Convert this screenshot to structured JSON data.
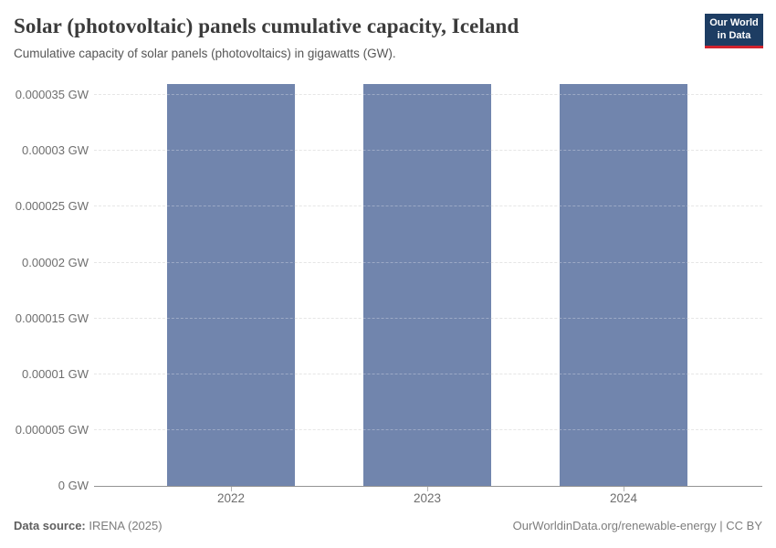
{
  "header": {
    "title": "Solar (photovoltaic) panels cumulative capacity, Iceland",
    "subtitle": "Cumulative capacity of solar panels (photovoltaics) in gigawatts (GW).",
    "logo": {
      "line1": "Our World",
      "line2": "in Data"
    }
  },
  "footer": {
    "source_label": "Data source:",
    "source_value": "IRENA (2025)",
    "right_text": "OurWorldinData.org/renewable-energy | CC BY"
  },
  "colors": {
    "bar": "#7185ad",
    "gridline": "#dcdcdc",
    "axis_line": "#949494",
    "tick_label": "#6e6e6e",
    "title_text": "#3b3b3b",
    "subtitle_text": "#555555",
    "footer_text": "#7d7d7d",
    "logo_background": "#1d3d63",
    "logo_red": "#d0232e"
  },
  "chart_data": {
    "type": "bar",
    "title": "Solar (photovoltaic) panels cumulative capacity, Iceland",
    "subtitle": "Cumulative capacity of solar panels (photovoltaics) in gigawatts (GW).",
    "unit": "GW",
    "categories": [
      "2022",
      "2023",
      "2024"
    ],
    "values": [
      3.6e-05,
      3.6e-05,
      3.6e-05
    ],
    "ylim": [
      0,
      3.6e-05
    ],
    "yticks": [
      {
        "value": 0,
        "label": "0 GW"
      },
      {
        "value": 5e-06,
        "label": "0.000005 GW"
      },
      {
        "value": 1e-05,
        "label": "0.00001 GW"
      },
      {
        "value": 1.5e-05,
        "label": "0.000015 GW"
      },
      {
        "value": 2e-05,
        "label": "0.00002 GW"
      },
      {
        "value": 2.5e-05,
        "label": "0.000025 GW"
      },
      {
        "value": 3e-05,
        "label": "0.00003 GW"
      },
      {
        "value": 3.5e-05,
        "label": "0.000035 GW"
      }
    ],
    "grid": "horizontal-dashed",
    "legend": "none",
    "bar_color": "#7185ad"
  }
}
